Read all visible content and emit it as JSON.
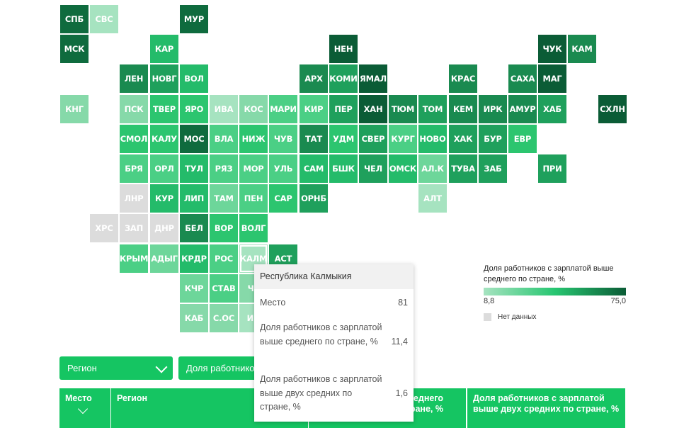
{
  "map": {
    "tiles": [
      {
        "label": "СПБ",
        "col": 0,
        "row": 0,
        "color": "#0f6b3e"
      },
      {
        "label": "СВС",
        "col": 1,
        "row": 0,
        "color": "#a6e3c0"
      },
      {
        "label": "МУР",
        "col": 4,
        "row": 0,
        "color": "#0f6b3e"
      },
      {
        "label": "МСК",
        "col": 0,
        "row": 1,
        "color": "#0f6b3e"
      },
      {
        "label": "КАР",
        "col": 3,
        "row": 1,
        "color": "#24bb6a"
      },
      {
        "label": "НЕН",
        "col": 9,
        "row": 1,
        "color": "#0b5c36"
      },
      {
        "label": "ЧУК",
        "col": 16,
        "row": 1,
        "color": "#0b5c36"
      },
      {
        "label": "КАМ",
        "col": 17,
        "row": 1,
        "color": "#1a8a50"
      },
      {
        "label": "ЛЕН",
        "col": 2,
        "row": 2,
        "color": "#1a8a50"
      },
      {
        "label": "НОВГ",
        "col": 3,
        "row": 2,
        "color": "#1fa05c"
      },
      {
        "label": "ВОЛ",
        "col": 4,
        "row": 2,
        "color": "#24bb6a"
      },
      {
        "label": "АРХ",
        "col": 8,
        "row": 2,
        "color": "#1a8a50"
      },
      {
        "label": "КОМИ",
        "col": 9,
        "row": 2,
        "color": "#1fa05c"
      },
      {
        "label": "ЯМАЛ",
        "col": 10,
        "row": 2,
        "color": "#0b5c36"
      },
      {
        "label": "КРАС",
        "col": 13,
        "row": 2,
        "color": "#1a8a50"
      },
      {
        "label": "САХА",
        "col": 15,
        "row": 2,
        "color": "#1a8a50"
      },
      {
        "label": "МАГ",
        "col": 16,
        "row": 2,
        "color": "#0b5c36"
      },
      {
        "label": "КНГ",
        "col": 0,
        "row": 3,
        "color": "#86d9a9"
      },
      {
        "label": "ПСК",
        "col": 2,
        "row": 3,
        "color": "#86d9a9"
      },
      {
        "label": "ТВЕР",
        "col": 3,
        "row": 3,
        "color": "#2cc56f"
      },
      {
        "label": "ЯРО",
        "col": 4,
        "row": 3,
        "color": "#2cc56f"
      },
      {
        "label": "ИВА",
        "col": 5,
        "row": 3,
        "color": "#a6e3c0"
      },
      {
        "label": "КОС",
        "col": 6,
        "row": 3,
        "color": "#86d9a9"
      },
      {
        "label": "МАРИ",
        "col": 7,
        "row": 3,
        "color": "#4bcf85"
      },
      {
        "label": "КИР",
        "col": 8,
        "row": 3,
        "color": "#4bcf85"
      },
      {
        "label": "ПЕР",
        "col": 9,
        "row": 3,
        "color": "#1fa05c"
      },
      {
        "label": "ХАН",
        "col": 10,
        "row": 3,
        "color": "#0b5c36"
      },
      {
        "label": "ТЮМ",
        "col": 11,
        "row": 3,
        "color": "#1a8a50"
      },
      {
        "label": "ТОМ",
        "col": 12,
        "row": 3,
        "color": "#1fa05c"
      },
      {
        "label": "КЕМ",
        "col": 13,
        "row": 3,
        "color": "#1a8a50"
      },
      {
        "label": "ИРК",
        "col": 14,
        "row": 3,
        "color": "#1a8a50"
      },
      {
        "label": "АМУР",
        "col": 15,
        "row": 3,
        "color": "#1a8a50"
      },
      {
        "label": "ХАБ",
        "col": 16,
        "row": 3,
        "color": "#1fa05c"
      },
      {
        "label": "СХЛН",
        "col": 18,
        "row": 3,
        "color": "#0b5c36"
      },
      {
        "label": "СМОЛ",
        "col": 2,
        "row": 4,
        "color": "#2cc56f"
      },
      {
        "label": "КАЛУ",
        "col": 3,
        "row": 4,
        "color": "#2cc56f"
      },
      {
        "label": "МОС",
        "col": 4,
        "row": 4,
        "color": "#0f6b3e"
      },
      {
        "label": "ВЛА",
        "col": 5,
        "row": 4,
        "color": "#4bcf85"
      },
      {
        "label": "НИЖ",
        "col": 6,
        "row": 4,
        "color": "#2cc56f"
      },
      {
        "label": "ЧУВ",
        "col": 7,
        "row": 4,
        "color": "#4bcf85"
      },
      {
        "label": "ТАТ",
        "col": 8,
        "row": 4,
        "color": "#1a8a50"
      },
      {
        "label": "УДМ",
        "col": 9,
        "row": 4,
        "color": "#2cc56f"
      },
      {
        "label": "СВЕР",
        "col": 10,
        "row": 4,
        "color": "#1fa05c"
      },
      {
        "label": "КУРГ",
        "col": 11,
        "row": 4,
        "color": "#4bcf85"
      },
      {
        "label": "НОВО",
        "col": 12,
        "row": 4,
        "color": "#24bb6a"
      },
      {
        "label": "ХАК",
        "col": 13,
        "row": 4,
        "color": "#1fa05c"
      },
      {
        "label": "БУР",
        "col": 14,
        "row": 4,
        "color": "#1fa05c"
      },
      {
        "label": "ЕВР",
        "col": 15,
        "row": 4,
        "color": "#2cc56f"
      },
      {
        "label": "БРЯ",
        "col": 2,
        "row": 5,
        "color": "#4bcf85"
      },
      {
        "label": "ОРЛ",
        "col": 3,
        "row": 5,
        "color": "#4bcf85"
      },
      {
        "label": "ТУЛ",
        "col": 4,
        "row": 5,
        "color": "#24bb6a"
      },
      {
        "label": "РЯЗ",
        "col": 5,
        "row": 5,
        "color": "#4bcf85"
      },
      {
        "label": "МОР",
        "col": 6,
        "row": 5,
        "color": "#4bcf85"
      },
      {
        "label": "УЛЬ",
        "col": 7,
        "row": 5,
        "color": "#4bcf85"
      },
      {
        "label": "САМ",
        "col": 8,
        "row": 5,
        "color": "#24bb6a"
      },
      {
        "label": "БШК",
        "col": 9,
        "row": 5,
        "color": "#24bb6a"
      },
      {
        "label": "ЧЕЛ",
        "col": 10,
        "row": 5,
        "color": "#1fa05c"
      },
      {
        "label": "ОМСК",
        "col": 11,
        "row": 5,
        "color": "#24bb6a"
      },
      {
        "label": "АЛ.К",
        "col": 12,
        "row": 5,
        "color": "#6dd69a"
      },
      {
        "label": "ТУВА",
        "col": 13,
        "row": 5,
        "color": "#1fa05c"
      },
      {
        "label": "ЗАБ",
        "col": 14,
        "row": 5,
        "color": "#1fa05c"
      },
      {
        "label": "ПРИ",
        "col": 16,
        "row": 5,
        "color": "#1fa05c"
      },
      {
        "label": "ЛНР",
        "col": 2,
        "row": 6,
        "color": "#dcdcdc"
      },
      {
        "label": "КУР",
        "col": 3,
        "row": 6,
        "color": "#24bb6a"
      },
      {
        "label": "ЛИП",
        "col": 4,
        "row": 6,
        "color": "#24bb6a"
      },
      {
        "label": "ТАМ",
        "col": 5,
        "row": 6,
        "color": "#6dd69a"
      },
      {
        "label": "ПЕН",
        "col": 6,
        "row": 6,
        "color": "#4bcf85"
      },
      {
        "label": "САР",
        "col": 7,
        "row": 6,
        "color": "#2cc56f"
      },
      {
        "label": "ОРНБ",
        "col": 8,
        "row": 6,
        "color": "#1fa05c"
      },
      {
        "label": "АЛТ",
        "col": 12,
        "row": 6,
        "color": "#a6e3c0"
      },
      {
        "label": "ХРС",
        "col": 1,
        "row": 7,
        "color": "#dcdcdc"
      },
      {
        "label": "ЗАП",
        "col": 2,
        "row": 7,
        "color": "#dcdcdc"
      },
      {
        "label": "ДНР",
        "col": 3,
        "row": 7,
        "color": "#dcdcdc"
      },
      {
        "label": "БЕЛ",
        "col": 4,
        "row": 7,
        "color": "#1a8a50"
      },
      {
        "label": "ВОР",
        "col": 5,
        "row": 7,
        "color": "#2cc56f"
      },
      {
        "label": "ВОЛГ",
        "col": 6,
        "row": 7,
        "color": "#2cc56f"
      },
      {
        "label": "КРЫМ",
        "col": 2,
        "row": 8,
        "color": "#4bcf85"
      },
      {
        "label": "АДЫГ",
        "col": 3,
        "row": 8,
        "color": "#6dd69a"
      },
      {
        "label": "КРДР",
        "col": 4,
        "row": 8,
        "color": "#24bb6a"
      },
      {
        "label": "РОС",
        "col": 5,
        "row": 8,
        "color": "#4bcf85"
      },
      {
        "label": "КАЛМ",
        "col": 6,
        "row": 8,
        "color": "#a6e3c0",
        "selected": true
      },
      {
        "label": "АСТ",
        "col": 7,
        "row": 8,
        "color": "#1fa05c"
      },
      {
        "label": "КЧР",
        "col": 4,
        "row": 9,
        "color": "#6dd69a"
      },
      {
        "label": "СТАВ",
        "col": 5,
        "row": 9,
        "color": "#4bcf85"
      },
      {
        "label": "ЧЕ",
        "col": 6,
        "row": 9,
        "color": "#86d9a9"
      },
      {
        "label": "КАБ",
        "col": 4,
        "row": 10,
        "color": "#86d9a9"
      },
      {
        "label": "С.ОС",
        "col": 5,
        "row": 10,
        "color": "#86d9a9"
      },
      {
        "label": "ИН",
        "col": 6,
        "row": 10,
        "color": "#a6e3c0"
      }
    ]
  },
  "legend": {
    "title": "Доля работников с зарплатой выше среднего по стране, %",
    "min": "8,8",
    "max": "75,0",
    "nodata": "Нет данных",
    "colors": {
      "low": "#a6e3c0",
      "mid": "#27c671",
      "high": "#0b5c36",
      "nodata": "#dcdcdc"
    }
  },
  "controls": {
    "region_dropdown": "Регион",
    "metric_dropdown": "Доля работников с зарплатой выше среднего по стране, %"
  },
  "table": {
    "headers": {
      "place": "Место",
      "region": "Регион",
      "col3": "Доля работников с зарплатой выше среднего по стране, %",
      "col4": "Доля работников с зарплатой выше двух средних по стране, %"
    },
    "col3_visible": "зарплатой выше среднего по стране, %"
  },
  "tooltip": {
    "title": "Республика Калмыкия",
    "place_label": "Место",
    "place_value": "81",
    "share_avg_label": "Доля работников с зарплатой выше среднего по стране, %",
    "share_avg_value": "11,4",
    "share_double_label": "Доля работников с зарплатой выше двух средних по стране, %",
    "share_double_value": "1,6"
  }
}
